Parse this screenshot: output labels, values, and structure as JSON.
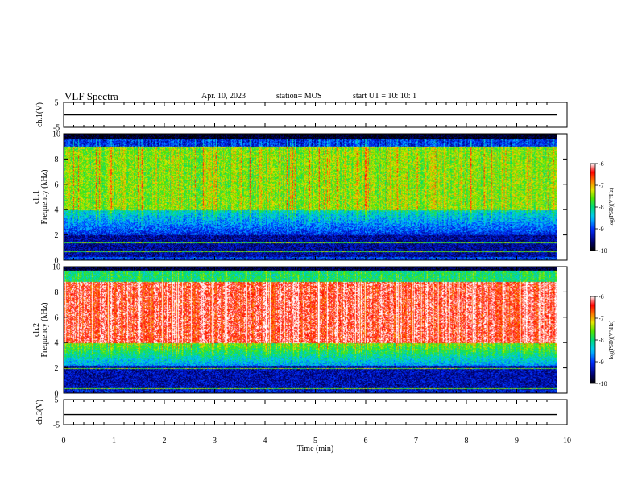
{
  "header": {
    "title": "VLF Spectra",
    "date": "Apr. 10, 2023",
    "station": "station= MOS",
    "start": "start  UT =   10: 10: 1"
  },
  "chart_data": [
    {
      "type": "line",
      "panel": "channel-1-waveform",
      "ylabel": "ch.1(V)",
      "ylim": [
        -5,
        5
      ],
      "yticks": [
        5,
        -5
      ],
      "xlim": [
        0,
        10
      ],
      "series": [
        {
          "x": [
            0,
            9.8
          ],
          "y": [
            0.0,
            0.0
          ]
        }
      ]
    },
    {
      "type": "heatmap",
      "panel": "channel-1-spectrogram",
      "ylabel": "ch.1\nFrequency (kHz)",
      "ylim": [
        0,
        10
      ],
      "yticks": [
        0,
        2,
        4,
        6,
        8,
        10
      ],
      "xlim": [
        0,
        10
      ],
      "data_x_end": 9.8,
      "colorbar": {
        "label": "log(PSD)(V²/Hz)",
        "range": [
          -10,
          -6
        ],
        "ticks": [
          -6,
          -7,
          -8,
          -9,
          -10
        ]
      }
    },
    {
      "type": "heatmap",
      "panel": "channel-2-spectrogram",
      "ylabel": "ch.2\nFrequency (kHz)",
      "ylim": [
        0,
        10
      ],
      "yticks": [
        0,
        2,
        4,
        6,
        8,
        10
      ],
      "xlim": [
        0,
        10
      ],
      "data_x_end": 9.8,
      "colorbar": {
        "label": "log(PSD)(V²/Hz)",
        "range": [
          -10,
          -6
        ],
        "ticks": [
          -6,
          -7,
          -8,
          -9,
          -10
        ]
      }
    },
    {
      "type": "line",
      "panel": "channel-3-waveform",
      "ylabel": "ch.3(V)",
      "ylim": [
        -5,
        5
      ],
      "yticks": [
        5,
        -5
      ],
      "xlim": [
        0,
        10
      ],
      "xlabel": "Time (min)",
      "xticks": [
        0,
        1,
        2,
        3,
        4,
        5,
        6,
        7,
        8,
        9,
        10
      ],
      "series": [
        {
          "x": [
            0,
            9.8
          ],
          "y": [
            -1.0,
            -1.0
          ]
        }
      ]
    }
  ]
}
